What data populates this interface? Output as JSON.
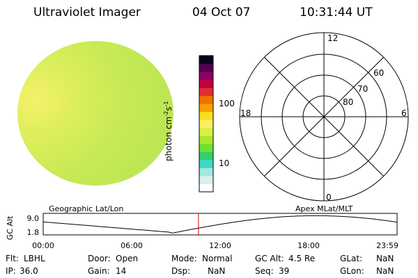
{
  "header": {
    "instrument": "Ultraviolet Imager",
    "date": "04 Oct 07",
    "time": "10:31:44 UT"
  },
  "colorbar": {
    "label_main": "photon cm",
    "label_sup1": "-2",
    "label_mid": "s",
    "label_sup2": "-1",
    "tick_100": "100",
    "tick_10": "10",
    "colors": [
      "#ffffff",
      "#d8f0f0",
      "#a0e8e0",
      "#40d8c8",
      "#30d070",
      "#70e030",
      "#a8e830",
      "#d8f040",
      "#f8f060",
      "#f8e020",
      "#f8a000",
      "#f07000",
      "#e03030",
      "#c00040",
      "#900060",
      "#500050",
      "#100020"
    ]
  },
  "polar": {
    "mlt_12": "12",
    "mlt_18": "18",
    "mlt_6": "6",
    "mlt_0": "0",
    "lat_60": "60",
    "lat_70": "70",
    "lat_80": "80"
  },
  "timeline": {
    "left_label": "Geographic Lat/Lon",
    "right_label": "Apex MLat/MLT",
    "y_label": "GC Alt",
    "y_top": "9.0",
    "y_bottom": "1.8",
    "ticks": [
      "00:00",
      "06:00",
      "12:00",
      "18:00",
      "23:59"
    ],
    "marker_time_hours": 10.53,
    "marker_color": "#e00000"
  },
  "info": {
    "flt_label": "Flt:",
    "flt_value": "LBHL",
    "door_label": "Door:",
    "door_value": "Open",
    "mode_label": "Mode:",
    "mode_value": "Normal",
    "gcalt_label": "GC Alt:",
    "gcalt_value": "4.5 Re",
    "glat_label": "GLat:",
    "glat_value": "NaN",
    "ip_label": "IP:",
    "ip_value": "36.0",
    "gain_label": "Gain:",
    "gain_value": "14",
    "dsp_label": "Dsp:",
    "dsp_value": "NaN",
    "seq_label": "Seq:",
    "seq_value": "39",
    "glon_label": "GLon:",
    "glon_value": "NaN"
  }
}
